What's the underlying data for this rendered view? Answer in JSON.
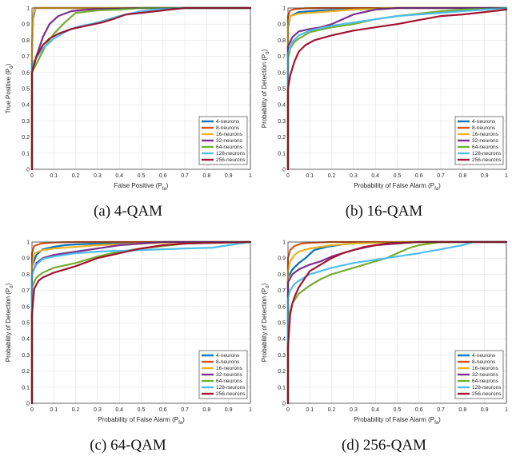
{
  "chart_data": [
    {
      "type": "line",
      "caption": "(a) 4-QAM",
      "xlabel": "False Positive (P",
      "xlabel_sub": "fa",
      "xlabel_end": ")",
      "ylabel": "True Positive (P",
      "ylabel_sub": "d",
      "ylabel_end": ")",
      "xlim": [
        0,
        1
      ],
      "ylim": [
        0,
        1
      ],
      "xticks": [
        "0",
        "0.1",
        "0.2",
        "0.3",
        "0.4",
        "0.5",
        "0.6",
        "0.7",
        "0.8",
        "0.9",
        "1"
      ],
      "yticks": [
        "0",
        "0.1",
        "0.2",
        "0.3",
        "0.4",
        "0.5",
        "0.6",
        "0.7",
        "0.8",
        "0.9",
        "1"
      ],
      "grid": true,
      "legend": "bottom-right",
      "series": [
        {
          "name": "4-neurons",
          "color": "#0072BD",
          "x": [
            0,
            0,
            0.005,
            0.015,
            1
          ],
          "y": [
            0,
            0.72,
            0.93,
            1,
            1
          ]
        },
        {
          "name": "8-neurons",
          "color": "#D95319",
          "x": [
            0,
            0,
            0.004,
            0.012,
            1
          ],
          "y": [
            0,
            0.73,
            0.95,
            1,
            1
          ]
        },
        {
          "name": "16-neurons",
          "color": "#EDB120",
          "x": [
            0,
            0,
            0.005,
            0.015,
            1
          ],
          "y": [
            0,
            0.72,
            0.96,
            1,
            1
          ]
        },
        {
          "name": "32-neurons",
          "color": "#7E2F8E",
          "x": [
            0,
            0,
            0.02,
            0.05,
            0.08,
            0.12,
            0.18,
            0.25,
            0.35,
            0.5,
            0.7,
            1
          ],
          "y": [
            0,
            0.6,
            0.7,
            0.82,
            0.9,
            0.95,
            0.98,
            0.99,
            0.995,
            1,
            1,
            1
          ]
        },
        {
          "name": "64-neurons",
          "color": "#77AC30",
          "x": [
            0,
            0,
            0.03,
            0.06,
            0.1,
            0.15,
            0.2,
            0.3,
            0.4,
            0.5,
            0.7,
            1
          ],
          "y": [
            0,
            0.6,
            0.68,
            0.76,
            0.84,
            0.91,
            0.97,
            0.985,
            0.99,
            1,
            1,
            1
          ]
        },
        {
          "name": "128-neurons",
          "color": "#4DBEEE",
          "x": [
            0,
            0,
            0.05,
            0.1,
            0.15,
            0.2,
            0.3,
            0.4,
            0.5,
            0.6,
            0.7,
            1
          ],
          "y": [
            0,
            0.65,
            0.75,
            0.81,
            0.85,
            0.88,
            0.91,
            0.95,
            0.98,
            0.995,
            1,
            1
          ]
        },
        {
          "name": "256-neurons",
          "color": "#A2142F",
          "x": [
            0,
            0,
            0.02,
            0.05,
            0.08,
            0.12,
            0.18,
            0.25,
            0.32,
            0.37,
            0.43,
            0.5,
            0.6,
            0.7,
            1
          ],
          "y": [
            0,
            0.6,
            0.7,
            0.77,
            0.81,
            0.84,
            0.87,
            0.89,
            0.91,
            0.93,
            0.96,
            0.97,
            0.985,
            1,
            1
          ]
        }
      ]
    },
    {
      "type": "line",
      "caption": "(b) 16-QAM",
      "xlabel": "Probability of False Alarm (P",
      "xlabel_sub": "fa",
      "xlabel_end": ")",
      "ylabel": "Probability of Detection (P",
      "ylabel_sub": "d",
      "ylabel_end": ")",
      "xlim": [
        0,
        1
      ],
      "ylim": [
        0,
        1
      ],
      "xticks": [
        "0",
        "0.1",
        "0.2",
        "0.3",
        "0.4",
        "0.5",
        "0.6",
        "0.7",
        "0.8",
        "0.9",
        "1"
      ],
      "yticks": [
        "0",
        "0.1",
        "0.2",
        "0.3",
        "0.4",
        "0.5",
        "0.6",
        "0.7",
        "0.8",
        "0.9",
        "1"
      ],
      "grid": true,
      "legend": "bottom-right",
      "series": [
        {
          "name": "4-neurons",
          "color": "#0072BD",
          "x": [
            0,
            0,
            0.01,
            0.05,
            0.15,
            0.3,
            0.5,
            0.7,
            1
          ],
          "y": [
            0,
            0.88,
            0.95,
            0.975,
            0.985,
            0.99,
            1,
            1,
            1
          ]
        },
        {
          "name": "8-neurons",
          "color": "#D95319",
          "x": [
            0,
            0,
            0.01,
            0.03,
            0.08,
            0.15,
            1
          ],
          "y": [
            0,
            0.95,
            0.985,
            0.993,
            0.998,
            1,
            1
          ]
        },
        {
          "name": "16-neurons",
          "color": "#EDB120",
          "x": [
            0,
            0,
            0.01,
            0.05,
            0.15,
            0.3,
            0.45,
            0.6,
            1
          ],
          "y": [
            0,
            0.9,
            0.95,
            0.965,
            0.975,
            0.99,
            1,
            1,
            1
          ]
        },
        {
          "name": "32-neurons",
          "color": "#7E2F8E",
          "x": [
            0,
            0,
            0.02,
            0.05,
            0.1,
            0.15,
            0.2,
            0.25,
            0.3,
            0.4,
            0.5,
            0.6,
            1
          ],
          "y": [
            0,
            0.76,
            0.82,
            0.855,
            0.87,
            0.88,
            0.9,
            0.93,
            0.96,
            0.99,
            1,
            1,
            1
          ]
        },
        {
          "name": "64-neurons",
          "color": "#77AC30",
          "x": [
            0,
            0,
            0.01,
            0.03,
            0.05,
            0.1,
            0.2,
            0.3,
            0.4,
            0.5,
            0.6,
            0.7,
            0.8,
            1
          ],
          "y": [
            0,
            0.68,
            0.75,
            0.79,
            0.81,
            0.85,
            0.88,
            0.9,
            0.93,
            0.95,
            0.965,
            0.98,
            0.99,
            1
          ]
        },
        {
          "name": "128-neurons",
          "color": "#4DBEEE",
          "x": [
            0,
            0,
            0.02,
            0.05,
            0.1,
            0.2,
            0.3,
            0.4,
            0.5,
            0.6,
            0.7,
            0.8,
            0.9,
            1
          ],
          "y": [
            0,
            0.72,
            0.79,
            0.83,
            0.86,
            0.89,
            0.91,
            0.93,
            0.95,
            0.96,
            0.97,
            0.98,
            0.99,
            1
          ]
        },
        {
          "name": "256-neurons",
          "color": "#A2142F",
          "x": [
            0,
            0,
            0.01,
            0.03,
            0.05,
            0.08,
            0.12,
            0.2,
            0.3,
            0.4,
            0.5,
            0.6,
            0.7,
            0.8,
            0.9,
            1
          ],
          "y": [
            0,
            0.5,
            0.58,
            0.67,
            0.73,
            0.77,
            0.8,
            0.83,
            0.86,
            0.88,
            0.9,
            0.925,
            0.95,
            0.96,
            0.975,
            0.99
          ]
        }
      ]
    },
    {
      "type": "line",
      "caption": "(c) 64-QAM",
      "xlabel": "Probability of False Alarm (P",
      "xlabel_sub": "fa",
      "xlabel_end": ")",
      "ylabel": "Probability of Detection (P",
      "ylabel_sub": "d",
      "ylabel_end": ")",
      "xlim": [
        0,
        1
      ],
      "ylim": [
        0,
        1
      ],
      "xticks": [
        "0",
        "0.1",
        "0.2",
        "0.3",
        "0.4",
        "0.5",
        "0.6",
        "0.7",
        "0.8",
        "0.9",
        "1"
      ],
      "yticks": [
        "0",
        "0.1",
        "0.2",
        "0.3",
        "0.4",
        "0.5",
        "0.6",
        "0.7",
        "0.8",
        "0.9",
        "1"
      ],
      "grid": true,
      "legend": "bottom-right",
      "series": [
        {
          "name": "4-neurons",
          "color": "#0072BD",
          "x": [
            0,
            0,
            0.02,
            0.05,
            0.1,
            0.15,
            0.2,
            0.3,
            0.4,
            0.5,
            1
          ],
          "y": [
            0,
            0.85,
            0.92,
            0.955,
            0.97,
            0.98,
            0.985,
            0.99,
            0.995,
            1,
            1
          ]
        },
        {
          "name": "8-neurons",
          "color": "#D95319",
          "x": [
            0,
            0,
            0.01,
            0.04,
            0.1,
            0.2,
            1
          ],
          "y": [
            0,
            0.93,
            0.975,
            0.99,
            0.997,
            1,
            1
          ]
        },
        {
          "name": "16-neurons",
          "color": "#EDB120",
          "x": [
            0,
            0,
            0.01,
            0.05,
            0.1,
            0.2,
            0.3,
            0.5,
            0.7,
            1
          ],
          "y": [
            0,
            0.85,
            0.93,
            0.95,
            0.96,
            0.97,
            0.98,
            0.99,
            1,
            1
          ]
        },
        {
          "name": "32-neurons",
          "color": "#7E2F8E",
          "x": [
            0,
            0,
            0.02,
            0.05,
            0.1,
            0.15,
            0.2,
            0.3,
            0.4,
            0.5,
            0.6,
            1
          ],
          "y": [
            0,
            0.8,
            0.87,
            0.9,
            0.92,
            0.93,
            0.94,
            0.96,
            0.98,
            0.99,
            1,
            1
          ]
        },
        {
          "name": "64-neurons",
          "color": "#77AC30",
          "x": [
            0,
            0,
            0.02,
            0.05,
            0.1,
            0.2,
            0.3,
            0.4,
            0.5,
            0.6,
            0.7,
            0.8,
            1
          ],
          "y": [
            0,
            0.72,
            0.78,
            0.81,
            0.84,
            0.87,
            0.91,
            0.94,
            0.96,
            0.975,
            0.99,
            0.995,
            1
          ]
        },
        {
          "name": "128-neurons",
          "color": "#4DBEEE",
          "x": [
            0,
            0,
            0.02,
            0.05,
            0.1,
            0.15,
            0.2,
            0.3,
            0.4,
            0.5,
            0.6,
            0.7,
            0.83,
            0.9,
            1
          ],
          "y": [
            0,
            0.8,
            0.86,
            0.895,
            0.91,
            0.92,
            0.93,
            0.94,
            0.945,
            0.95,
            0.955,
            0.96,
            0.965,
            0.98,
            1
          ]
        },
        {
          "name": "256-neurons",
          "color": "#A2142F",
          "x": [
            0,
            0,
            0.01,
            0.03,
            0.05,
            0.1,
            0.2,
            0.3,
            0.4,
            0.5,
            0.6,
            0.7,
            1
          ],
          "y": [
            0,
            0.55,
            0.71,
            0.76,
            0.78,
            0.81,
            0.85,
            0.9,
            0.93,
            0.96,
            0.98,
            0.99,
            1
          ]
        }
      ]
    },
    {
      "type": "line",
      "caption": "(d) 256-QAM",
      "xlabel": "Probability of False Alarm (P",
      "xlabel_sub": "fa",
      "xlabel_end": ")",
      "ylabel": "Probability of Detection (P",
      "ylabel_sub": "d",
      "ylabel_end": ")",
      "xlim": [
        0,
        1
      ],
      "ylim": [
        0,
        1
      ],
      "xticks": [
        "0",
        "0.1",
        "0.2",
        "0.3",
        "0.4",
        "0.5",
        "0.6",
        "0.7",
        "0.8",
        "0.9",
        "1"
      ],
      "yticks": [
        "0",
        "0.1",
        "0.2",
        "0.3",
        "0.4",
        "0.5",
        "0.6",
        "0.7",
        "0.8",
        "0.9",
        "1"
      ],
      "grid": true,
      "legend": "bottom-right",
      "series": [
        {
          "name": "4-neurons",
          "color": "#0072BD",
          "x": [
            0,
            0,
            0.02,
            0.05,
            0.08,
            0.12,
            0.18,
            0.25,
            0.35,
            0.5,
            1
          ],
          "y": [
            0,
            0.78,
            0.83,
            0.87,
            0.9,
            0.95,
            0.97,
            0.985,
            0.995,
            1,
            1
          ]
        },
        {
          "name": "8-neurons",
          "color": "#D95319",
          "x": [
            0,
            0,
            0.01,
            0.03,
            0.06,
            0.1,
            0.2,
            1
          ],
          "y": [
            0,
            0.9,
            0.95,
            0.975,
            0.99,
            0.995,
            1,
            1
          ]
        },
        {
          "name": "16-neurons",
          "color": "#EDB120",
          "x": [
            0,
            0,
            0.01,
            0.03,
            0.05,
            0.1,
            0.2,
            0.3,
            0.4,
            0.5,
            1
          ],
          "y": [
            0,
            0.82,
            0.88,
            0.92,
            0.94,
            0.96,
            0.98,
            0.99,
            0.995,
            1,
            1
          ]
        },
        {
          "name": "32-neurons",
          "color": "#7E2F8E",
          "x": [
            0,
            0,
            0.02,
            0.05,
            0.1,
            0.15,
            0.2,
            0.25,
            0.3,
            0.4,
            0.5,
            0.6,
            1
          ],
          "y": [
            0,
            0.75,
            0.8,
            0.83,
            0.86,
            0.88,
            0.91,
            0.93,
            0.95,
            0.98,
            0.99,
            1,
            1
          ]
        },
        {
          "name": "64-neurons",
          "color": "#77AC30",
          "x": [
            0,
            0,
            0.02,
            0.05,
            0.1,
            0.15,
            0.2,
            0.3,
            0.4,
            0.45,
            0.5,
            0.55,
            0.6,
            0.7,
            1
          ],
          "y": [
            0,
            0.52,
            0.62,
            0.68,
            0.73,
            0.77,
            0.8,
            0.84,
            0.88,
            0.9,
            0.93,
            0.96,
            0.98,
            1,
            1
          ]
        },
        {
          "name": "128-neurons",
          "color": "#4DBEEE",
          "x": [
            0,
            0,
            0.01,
            0.03,
            0.05,
            0.1,
            0.15,
            0.2,
            0.3,
            0.4,
            0.5,
            0.6,
            0.7,
            0.8,
            0.85,
            1
          ],
          "y": [
            0,
            0.65,
            0.7,
            0.74,
            0.76,
            0.8,
            0.82,
            0.84,
            0.87,
            0.89,
            0.91,
            0.93,
            0.955,
            0.98,
            1,
            1
          ]
        },
        {
          "name": "256-neurons",
          "color": "#A2142F",
          "x": [
            0,
            0,
            0.005,
            0.01,
            0.02,
            0.03,
            0.05,
            0.08,
            0.1,
            0.15,
            0.2,
            0.25,
            0.3,
            0.35,
            0.45,
            0.6,
            1
          ],
          "y": [
            0,
            0.35,
            0.45,
            0.55,
            0.62,
            0.66,
            0.72,
            0.78,
            0.82,
            0.86,
            0.9,
            0.93,
            0.95,
            0.97,
            0.99,
            1,
            1
          ]
        }
      ]
    }
  ]
}
